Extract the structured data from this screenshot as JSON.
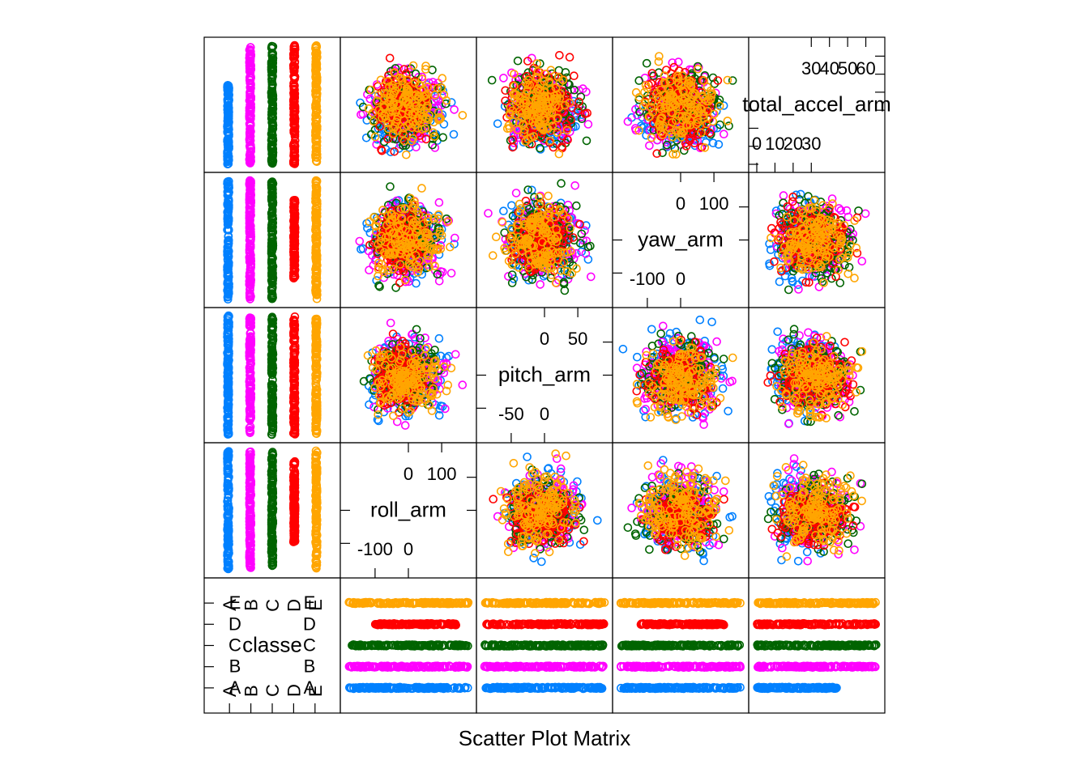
{
  "chart_data": {
    "type": "scatter",
    "subtype": "scatter-plot-matrix",
    "xlabel": "Scatter Plot Matrix",
    "variables": [
      {
        "name": "classe",
        "type": "factor",
        "levels": [
          "A",
          "B",
          "C",
          "D",
          "E"
        ]
      },
      {
        "name": "roll_arm",
        "range": [
          -180,
          180
        ],
        "ticks_low": [
          "-100",
          "0"
        ],
        "ticks_high": [
          "0",
          "100"
        ]
      },
      {
        "name": "pitch_arm",
        "range": [
          -90,
          90
        ],
        "ticks_low": [
          "-50",
          "0"
        ],
        "ticks_high": [
          "0",
          "50"
        ]
      },
      {
        "name": "yaw_arm",
        "range": [
          -180,
          180
        ],
        "ticks_low": [
          "-100",
          "0"
        ],
        "ticks_high": [
          "0",
          "100"
        ]
      },
      {
        "name": "total_accel_arm",
        "display_name": "total_accel_arm",
        "range": [
          0,
          66
        ],
        "ticks_low": [
          "0",
          "10",
          "20",
          "30"
        ],
        "ticks_high": [
          "30",
          "40",
          "50",
          "60"
        ],
        "ticks_extra": [
          "10",
          "30",
          "30",
          "50"
        ]
      }
    ],
    "groups": [
      {
        "name": "A",
        "color": "#0080FF"
      },
      {
        "name": "B",
        "color": "#FF00FF"
      },
      {
        "name": "C",
        "color": "#006400"
      },
      {
        "name": "D",
        "color": "#FF0000"
      },
      {
        "name": "E",
        "color": "#FFA500"
      }
    ],
    "class_ranges": {
      "roll_arm": {
        "A": [
          -180,
          180
        ],
        "B": [
          -180,
          180
        ],
        "C": [
          -165,
          148
        ],
        "D": [
          -140,
          100
        ],
        "E": [
          -175,
          180
        ]
      },
      "pitch_arm": {
        "A": [
          -88,
          88
        ],
        "B": [
          -88,
          88
        ],
        "C": [
          -82,
          80
        ],
        "D": [
          -80,
          75
        ],
        "E": [
          -87,
          70
        ]
      },
      "yaw_arm": {
        "A": [
          -180,
          180
        ],
        "B": [
          -180,
          180
        ],
        "C": [
          -180,
          180
        ],
        "D": [
          -150,
          150
        ],
        "E": [
          -175,
          180
        ]
      },
      "total_accel_arm": {
        "A": [
          1,
          49
        ],
        "B": [
          1,
          64
        ],
        "C": [
          1,
          64
        ],
        "D": [
          1,
          62
        ],
        "E": [
          1,
          64
        ]
      }
    },
    "strips": {
      "roll_arm": {
        "A": [
          -180,
          180
        ],
        "B": [
          -180,
          180
        ],
        "C": [
          -170,
          180
        ],
        "D": [
          -100,
          150
        ],
        "E": [
          -180,
          180
        ]
      },
      "pitch_arm": {
        "A": [
          -90,
          90
        ],
        "B": [
          -90,
          90
        ],
        "C": [
          -90,
          90
        ],
        "D": [
          -90,
          90
        ],
        "E": [
          -90,
          90
        ]
      },
      "yaw_arm": {
        "A": [
          -180,
          180
        ],
        "B": [
          -180,
          180
        ],
        "C": [
          -180,
          180
        ],
        "D": [
          -120,
          130
        ],
        "E": [
          -180,
          180
        ]
      },
      "total_accel_arm": {
        "A": [
          0,
          44
        ],
        "B": [
          0,
          66
        ],
        "C": [
          0,
          66
        ],
        "D": [
          0,
          66
        ],
        "E": [
          0,
          66
        ]
      }
    },
    "grid": false,
    "legend": "none"
  },
  "colors": {
    "background": "#FFFFFF",
    "axis": "#000000"
  }
}
